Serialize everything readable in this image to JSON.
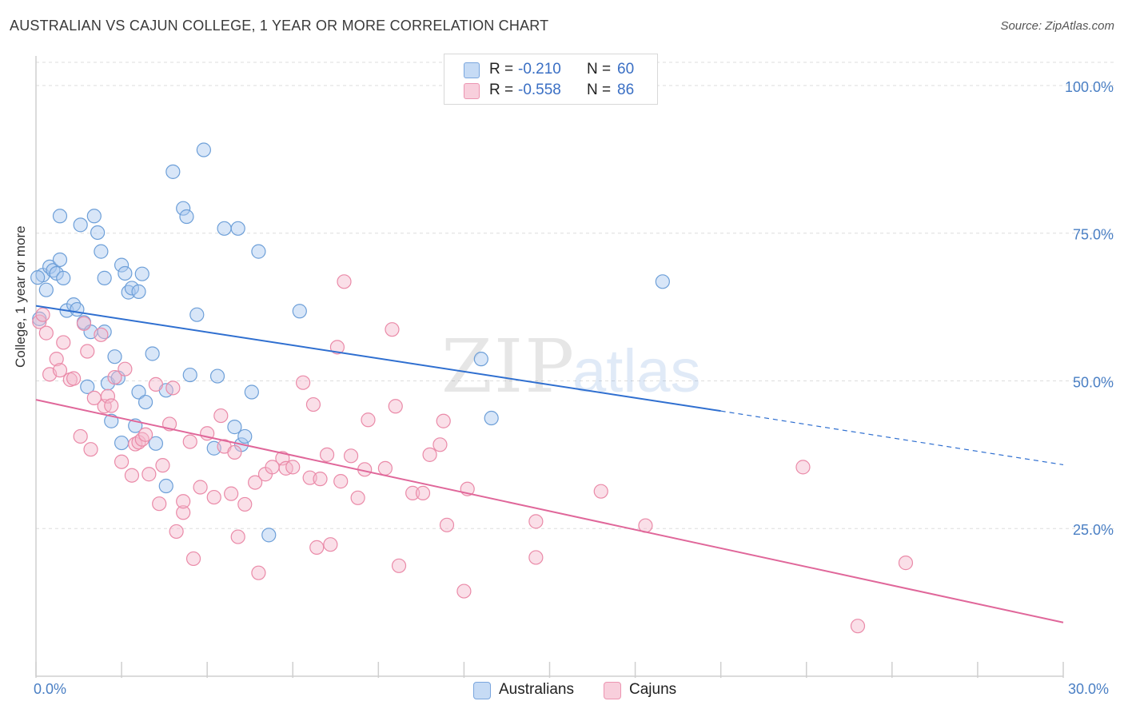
{
  "header": {
    "title": "AUSTRALIAN VS CAJUN COLLEGE, 1 YEAR OR MORE CORRELATION CHART",
    "source": "Source: ZipAtlas.com"
  },
  "legend": {
    "rows": [
      {
        "r_label": "R =",
        "r_value": "-0.210",
        "n_label": "N =",
        "n_value": "60",
        "color": "#a9c8f0"
      },
      {
        "r_label": "R =",
        "r_value": "-0.558",
        "n_label": "N =",
        "n_value": "86",
        "color": "#f5b8cb"
      }
    ],
    "series_names": [
      "Australians",
      "Cajuns"
    ]
  },
  "watermark": {
    "zip": "ZIP",
    "atlas": "atlas"
  },
  "colors": {
    "australians_fill": "#a9c8f0",
    "australians_stroke": "#6d9fd8",
    "australians_line": "#2f6fd0",
    "cajuns_fill": "#f5b8cb",
    "cajuns_stroke": "#ea8aa8",
    "cajuns_line": "#e0679a",
    "tick_label": "#4a7fc4",
    "grid": "#dddddd"
  },
  "chart_data": {
    "type": "scatter",
    "title": "AUSTRALIAN VS CAJUN COLLEGE, 1 YEAR OR MORE CORRELATION CHART",
    "xlabel": "",
    "ylabel": "College, 1 year or more",
    "xlim": [
      0,
      30
    ],
    "ylim": [
      0,
      105
    ],
    "x_tick_labels": [
      "0.0%",
      "30.0%"
    ],
    "y_ticks": [
      25,
      50,
      75,
      100
    ],
    "y_tick_labels": [
      "25.0%",
      "50.0%",
      "75.0%",
      "100.0%"
    ],
    "grid": true,
    "legend_position": "top-center",
    "series": [
      {
        "name": "Australians",
        "r": -0.21,
        "n": 60,
        "trend": {
          "x0": 0,
          "y0": 62.7,
          "x1": 20,
          "y1": 44.9,
          "dashed_to_x": 30,
          "dashed_to_y": 35.8
        },
        "points": [
          [
            0.1,
            60.5
          ],
          [
            0.2,
            67.9
          ],
          [
            0.3,
            65.4
          ],
          [
            0.4,
            69.3
          ],
          [
            0.5,
            68.7
          ],
          [
            0.6,
            68.2
          ],
          [
            0.7,
            70.5
          ],
          [
            0.7,
            77.9
          ],
          [
            0.8,
            67.4
          ],
          [
            0.9,
            61.9
          ],
          [
            1.1,
            62.9
          ],
          [
            1.2,
            62.1
          ],
          [
            1.3,
            76.4
          ],
          [
            1.4,
            59.9
          ],
          [
            1.5,
            49.0
          ],
          [
            1.6,
            58.3
          ],
          [
            1.7,
            77.9
          ],
          [
            1.8,
            75.1
          ],
          [
            1.9,
            71.9
          ],
          [
            2.0,
            58.3
          ],
          [
            2.0,
            67.4
          ],
          [
            2.1,
            49.6
          ],
          [
            2.2,
            43.2
          ],
          [
            2.3,
            54.1
          ],
          [
            2.4,
            50.5
          ],
          [
            2.5,
            69.6
          ],
          [
            2.5,
            39.5
          ],
          [
            2.6,
            68.2
          ],
          [
            2.7,
            65.0
          ],
          [
            2.8,
            65.7
          ],
          [
            2.9,
            42.4
          ],
          [
            3.0,
            65.1
          ],
          [
            3.0,
            48.1
          ],
          [
            3.1,
            68.1
          ],
          [
            3.2,
            46.4
          ],
          [
            3.4,
            54.6
          ],
          [
            3.5,
            39.4
          ],
          [
            3.8,
            32.2
          ],
          [
            3.8,
            48.4
          ],
          [
            4.0,
            85.4
          ],
          [
            4.3,
            79.2
          ],
          [
            4.4,
            77.8
          ],
          [
            4.5,
            51.0
          ],
          [
            4.7,
            61.2
          ],
          [
            4.9,
            89.1
          ],
          [
            5.2,
            38.6
          ],
          [
            5.3,
            50.8
          ],
          [
            5.5,
            75.8
          ],
          [
            5.8,
            42.2
          ],
          [
            5.9,
            75.8
          ],
          [
            6.0,
            39.2
          ],
          [
            6.1,
            40.6
          ],
          [
            6.3,
            48.1
          ],
          [
            6.5,
            71.9
          ],
          [
            6.8,
            23.9
          ],
          [
            7.7,
            61.8
          ],
          [
            13.0,
            53.7
          ],
          [
            13.3,
            43.7
          ],
          [
            18.3,
            66.8
          ],
          [
            0.05,
            67.5
          ]
        ]
      },
      {
        "name": "Cajuns",
        "r": -0.558,
        "n": 86,
        "trend": {
          "x0": 0,
          "y0": 46.8,
          "x1": 30,
          "y1": 9.1
        },
        "points": [
          [
            0.1,
            60.0
          ],
          [
            0.2,
            61.2
          ],
          [
            0.3,
            58.1
          ],
          [
            0.4,
            51.1
          ],
          [
            0.6,
            53.7
          ],
          [
            0.7,
            51.8
          ],
          [
            0.8,
            56.5
          ],
          [
            1.0,
            50.2
          ],
          [
            1.1,
            50.4
          ],
          [
            1.3,
            40.6
          ],
          [
            1.4,
            59.7
          ],
          [
            1.5,
            55.0
          ],
          [
            1.6,
            38.4
          ],
          [
            1.7,
            47.1
          ],
          [
            1.9,
            57.8
          ],
          [
            2.0,
            45.7
          ],
          [
            2.1,
            47.4
          ],
          [
            2.2,
            45.8
          ],
          [
            2.3,
            50.6
          ],
          [
            2.5,
            36.3
          ],
          [
            2.6,
            52.0
          ],
          [
            2.8,
            34.0
          ],
          [
            2.9,
            39.3
          ],
          [
            3.0,
            39.6
          ],
          [
            3.1,
            40.1
          ],
          [
            3.2,
            40.9
          ],
          [
            3.3,
            34.2
          ],
          [
            3.5,
            49.4
          ],
          [
            3.6,
            29.2
          ],
          [
            3.7,
            35.7
          ],
          [
            3.9,
            42.7
          ],
          [
            4.0,
            48.8
          ],
          [
            4.1,
            24.5
          ],
          [
            4.3,
            27.7
          ],
          [
            4.3,
            29.6
          ],
          [
            4.5,
            39.7
          ],
          [
            4.6,
            19.9
          ],
          [
            4.8,
            32.0
          ],
          [
            5.0,
            41.1
          ],
          [
            5.2,
            30.3
          ],
          [
            5.4,
            44.1
          ],
          [
            5.5,
            38.9
          ],
          [
            5.7,
            30.9
          ],
          [
            5.8,
            37.9
          ],
          [
            5.9,
            23.6
          ],
          [
            6.1,
            29.1
          ],
          [
            6.4,
            32.8
          ],
          [
            6.5,
            17.5
          ],
          [
            6.7,
            34.2
          ],
          [
            6.9,
            35.4
          ],
          [
            7.2,
            36.9
          ],
          [
            7.3,
            35.2
          ],
          [
            7.5,
            35.4
          ],
          [
            7.8,
            49.7
          ],
          [
            8.0,
            33.6
          ],
          [
            8.1,
            46.0
          ],
          [
            8.2,
            21.8
          ],
          [
            8.3,
            33.4
          ],
          [
            8.5,
            37.5
          ],
          [
            8.6,
            22.3
          ],
          [
            8.8,
            55.7
          ],
          [
            8.9,
            33.0
          ],
          [
            9.0,
            66.8
          ],
          [
            9.2,
            37.3
          ],
          [
            9.4,
            30.2
          ],
          [
            9.6,
            35.0
          ],
          [
            9.7,
            43.4
          ],
          [
            10.2,
            35.2
          ],
          [
            10.4,
            58.7
          ],
          [
            10.5,
            45.7
          ],
          [
            10.6,
            18.7
          ],
          [
            11.0,
            31.0
          ],
          [
            11.3,
            31.0
          ],
          [
            11.5,
            37.5
          ],
          [
            11.8,
            39.2
          ],
          [
            11.9,
            43.2
          ],
          [
            12.0,
            25.6
          ],
          [
            12.5,
            14.4
          ],
          [
            12.6,
            31.7
          ],
          [
            14.6,
            26.2
          ],
          [
            14.6,
            20.1
          ],
          [
            16.5,
            31.3
          ],
          [
            17.8,
            25.5
          ],
          [
            22.4,
            35.4
          ],
          [
            24.0,
            8.5
          ],
          [
            25.4,
            19.2
          ]
        ]
      }
    ]
  }
}
